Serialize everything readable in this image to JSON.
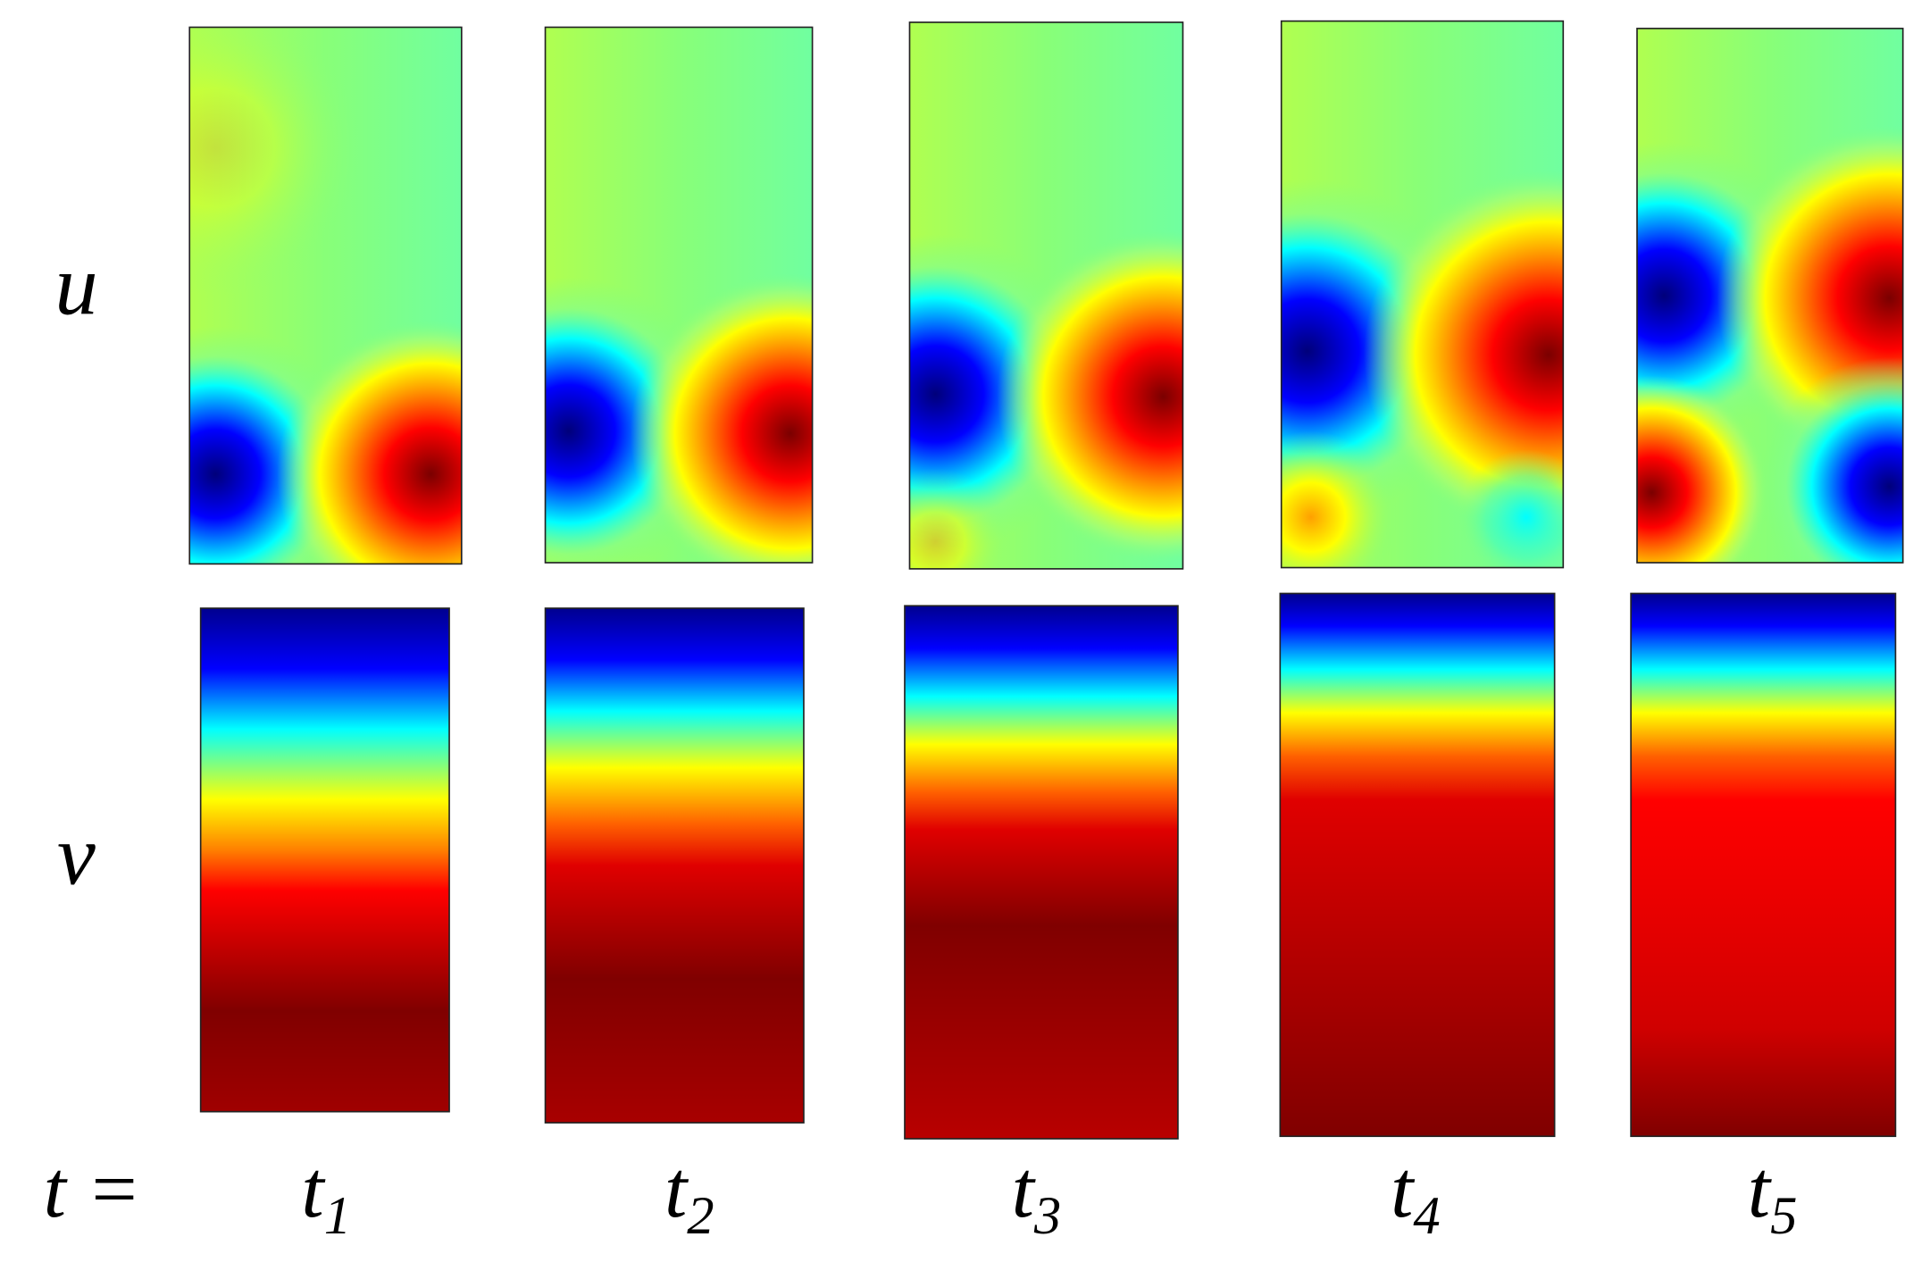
{
  "rows": [
    {
      "label": "u"
    },
    {
      "label": "v"
    }
  ],
  "time_label": "t =",
  "columns": [
    {
      "base": "t",
      "sub": "1"
    },
    {
      "base": "t",
      "sub": "2"
    },
    {
      "base": "t",
      "sub": "3"
    },
    {
      "base": "t",
      "sub": "4"
    },
    {
      "base": "t",
      "sub": "5"
    }
  ]
}
